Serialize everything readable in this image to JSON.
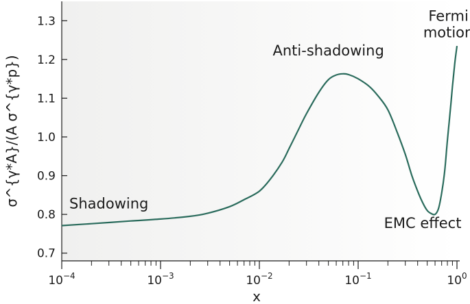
{
  "chart_data": {
    "type": "line",
    "xscale": "log",
    "xlabel": "x",
    "ylabel": "σ^{γ*A}/(A σ^{γ*p})",
    "xlim": [
      0.0001,
      1.0
    ],
    "ylim": [
      0.68,
      1.35
    ],
    "xticks": [
      {
        "value": 0.0001,
        "base": "10",
        "exp": "−4"
      },
      {
        "value": 0.001,
        "base": "10",
        "exp": "−3"
      },
      {
        "value": 0.01,
        "base": "10",
        "exp": "−2"
      },
      {
        "value": 0.1,
        "base": "10",
        "exp": "−1"
      },
      {
        "value": 1,
        "base": "10",
        "exp": "0"
      }
    ],
    "yticks": [
      {
        "value": 0.7,
        "label": "0.7"
      },
      {
        "value": 0.8,
        "label": "0.8"
      },
      {
        "value": 0.9,
        "label": "0.9"
      },
      {
        "value": 1.0,
        "label": "1.0"
      },
      {
        "value": 1.1,
        "label": "1.1"
      },
      {
        "value": 1.2,
        "label": "1.2"
      },
      {
        "value": 1.3,
        "label": "1.3"
      }
    ],
    "series": [
      {
        "color": "#2a6b5c",
        "x": [
          0.0001,
          0.0002,
          0.0005,
          0.001,
          0.002,
          0.003,
          0.005,
          0.007,
          0.01,
          0.013,
          0.017,
          0.02,
          0.025,
          0.03,
          0.04,
          0.05,
          0.06,
          0.07,
          0.08,
          0.1,
          0.13,
          0.16,
          0.2,
          0.25,
          0.3,
          0.35,
          0.4,
          0.45,
          0.5,
          0.55,
          0.6,
          0.65,
          0.7,
          0.75,
          0.8,
          0.85,
          0.9,
          0.95,
          1.0
        ],
        "y": [
          0.771,
          0.776,
          0.783,
          0.788,
          0.795,
          0.803,
          0.82,
          0.838,
          0.86,
          0.892,
          0.935,
          0.97,
          1.02,
          1.06,
          1.115,
          1.148,
          1.16,
          1.163,
          1.161,
          1.15,
          1.13,
          1.105,
          1.07,
          1.01,
          0.955,
          0.9,
          0.86,
          0.83,
          0.81,
          0.802,
          0.8,
          0.815,
          0.855,
          0.91,
          0.99,
          1.06,
          1.13,
          1.19,
          1.235
        ]
      }
    ],
    "annotations": [
      {
        "text": "Shadowing",
        "x": 0.0003,
        "y": 0.815
      },
      {
        "text": "Anti-shadowing",
        "x": 0.05,
        "y": 1.21
      },
      {
        "text": "EMC effect",
        "x": 0.45,
        "y": 0.765
      },
      {
        "text": "Fermi",
        "x": 0.82,
        "y": 1.3
      },
      {
        "text": "motion",
        "x": 0.82,
        "y": 1.257
      }
    ],
    "grid": false,
    "legend": "none"
  }
}
